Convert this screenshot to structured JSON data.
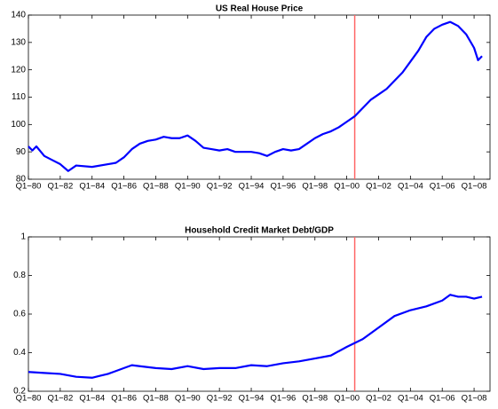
{
  "chart_data": [
    {
      "type": "line",
      "title": "US Real House Price",
      "x": [
        1980,
        1980.25,
        1980.5,
        1981,
        1981.5,
        1982,
        1982.5,
        1983,
        1984,
        1985,
        1985.5,
        1986,
        1986.5,
        1987,
        1987.5,
        1988,
        1988.5,
        1989,
        1989.5,
        1990,
        1990.5,
        1991,
        1991.5,
        1992,
        1992.5,
        1993,
        1994,
        1994.5,
        1995,
        1995.5,
        1996,
        1996.5,
        1997,
        1997.5,
        1998,
        1998.5,
        1999,
        1999.5,
        2000,
        2000.5,
        2001,
        2001.5,
        2002,
        2002.5,
        2003,
        2003.5,
        2004,
        2004.5,
        2005,
        2005.5,
        2006,
        2006.5,
        2007,
        2007.5,
        2008,
        2008.25,
        2008.5
      ],
      "series": [
        {
          "color": "#0000ff",
          "values": [
            92,
            90.5,
            92,
            88.5,
            87,
            85.5,
            83,
            85,
            84.5,
            85.5,
            86,
            88,
            91,
            93,
            94,
            94.5,
            95.5,
            95,
            95,
            96,
            94,
            91.5,
            91,
            90.5,
            91,
            90,
            90,
            89.5,
            88.5,
            90,
            91,
            90.5,
            91,
            93,
            95,
            96.5,
            97.5,
            99,
            101,
            103,
            106,
            109,
            111,
            113,
            116,
            119,
            123,
            127,
            132,
            135,
            136.5,
            137.5,
            136,
            133,
            128,
            123.5,
            125
          ]
        }
      ],
      "vline": {
        "value": 2000.5,
        "color": "#ff6666"
      },
      "xlim": [
        1980,
        2009
      ],
      "xticks": [
        {
          "value": 1980,
          "label": "Q1−80"
        },
        {
          "value": 1982,
          "label": "Q1−82"
        },
        {
          "value": 1984,
          "label": "Q1−84"
        },
        {
          "value": 1986,
          "label": "Q1−86"
        },
        {
          "value": 1988,
          "label": "Q1−88"
        },
        {
          "value": 1990,
          "label": "Q1−90"
        },
        {
          "value": 1992,
          "label": "Q1−92"
        },
        {
          "value": 1994,
          "label": "Q1−94"
        },
        {
          "value": 1996,
          "label": "Q1−96"
        },
        {
          "value": 1998,
          "label": "Q1−98"
        },
        {
          "value": 2000,
          "label": "Q1−00"
        },
        {
          "value": 2002,
          "label": "Q1−02"
        },
        {
          "value": 2004,
          "label": "Q1−04"
        },
        {
          "value": 2006,
          "label": "Q1−06"
        },
        {
          "value": 2008,
          "label": "Q1−08"
        }
      ],
      "ylim": [
        80,
        140
      ],
      "yticks": [
        80,
        90,
        100,
        110,
        120,
        130,
        140
      ]
    },
    {
      "type": "line",
      "title": "Household Credit Market Debt/GDP",
      "x": [
        1980,
        1981,
        1982,
        1983,
        1984,
        1984.5,
        1985,
        1986,
        1986.5,
        1987,
        1988,
        1989,
        1990,
        1991,
        1992,
        1993,
        1994,
        1995,
        1996,
        1997,
        1998,
        1999,
        2000,
        2001,
        2002,
        2003,
        2004,
        2005,
        2006,
        2006.5,
        2007,
        2007.5,
        2008,
        2008.5
      ],
      "series": [
        {
          "color": "#0000ff",
          "values": [
            0.3,
            0.295,
            0.29,
            0.275,
            0.27,
            0.28,
            0.29,
            0.32,
            0.335,
            0.33,
            0.32,
            0.315,
            0.33,
            0.315,
            0.32,
            0.32,
            0.335,
            0.33,
            0.345,
            0.355,
            0.37,
            0.385,
            0.43,
            0.47,
            0.53,
            0.59,
            0.62,
            0.64,
            0.67,
            0.7,
            0.69,
            0.69,
            0.68,
            0.69
          ]
        }
      ],
      "vline": {
        "value": 2000.5,
        "color": "#ff6666"
      },
      "xlim": [
        1980,
        2009
      ],
      "xticks": [
        {
          "value": 1980,
          "label": "Q1−80"
        },
        {
          "value": 1982,
          "label": "Q1−82"
        },
        {
          "value": 1984,
          "label": "Q1−84"
        },
        {
          "value": 1986,
          "label": "Q1−86"
        },
        {
          "value": 1988,
          "label": "Q1−88"
        },
        {
          "value": 1990,
          "label": "Q1−90"
        },
        {
          "value": 1992,
          "label": "Q1−92"
        },
        {
          "value": 1994,
          "label": "Q1−94"
        },
        {
          "value": 1996,
          "label": "Q1−96"
        },
        {
          "value": 1998,
          "label": "Q1−98"
        },
        {
          "value": 2000,
          "label": "Q1−00"
        },
        {
          "value": 2002,
          "label": "Q1−02"
        },
        {
          "value": 2004,
          "label": "Q1−04"
        },
        {
          "value": 2006,
          "label": "Q1−06"
        },
        {
          "value": 2008,
          "label": "Q1−08"
        }
      ],
      "ylim": [
        0.2,
        1
      ],
      "yticks": [
        0.2,
        0.4,
        0.6,
        0.8,
        1
      ]
    }
  ]
}
